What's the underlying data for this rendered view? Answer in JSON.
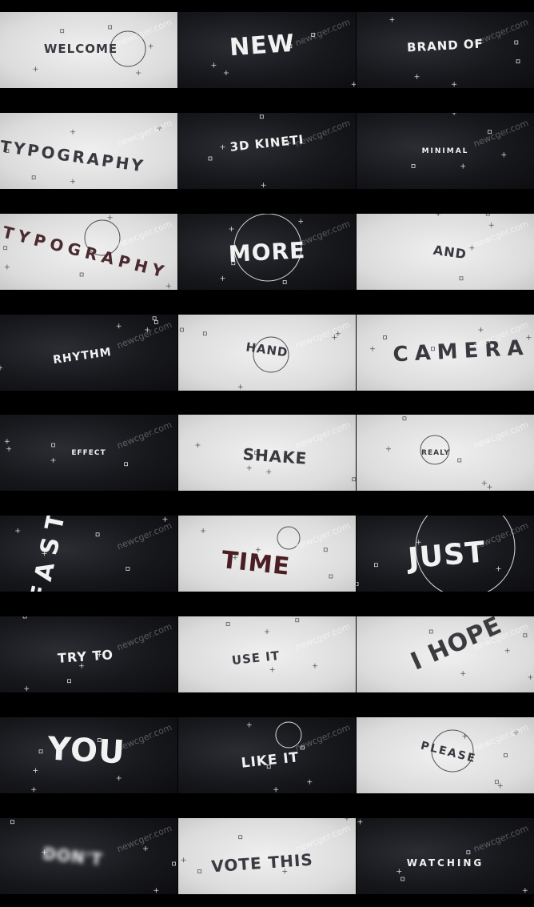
{
  "watermark": "newcger.com",
  "frames": [
    {
      "text": "WELCOME",
      "theme": "light"
    },
    {
      "text": "NEW",
      "theme": "dark"
    },
    {
      "text": "BRAND OF",
      "theme": "dark"
    },
    {
      "text": "TYPOGRAPHY",
      "theme": "light"
    },
    {
      "text": "3D KINETI",
      "theme": "dark"
    },
    {
      "text": "MINIMAL",
      "theme": "dark"
    },
    {
      "text": "TYPOGRAPHY",
      "theme": "light"
    },
    {
      "text": "MORE",
      "theme": "dark"
    },
    {
      "text": "AND",
      "theme": "light"
    },
    {
      "text": "RHYTHM",
      "theme": "dark"
    },
    {
      "text": "HAND",
      "theme": "light"
    },
    {
      "text": "CAMERA",
      "theme": "light"
    },
    {
      "text": "EFFECT",
      "theme": "dark"
    },
    {
      "text": "SHAKE",
      "theme": "light"
    },
    {
      "text": "REALY",
      "theme": "light"
    },
    {
      "text": "FAST",
      "theme": "dark"
    },
    {
      "text": "TIME",
      "theme": "light"
    },
    {
      "text": "JUST",
      "theme": "dark"
    },
    {
      "text": "TRY TO",
      "theme": "dark"
    },
    {
      "text": "USE IT",
      "theme": "light"
    },
    {
      "text": "I HOPE",
      "theme": "light"
    },
    {
      "text": "YOU",
      "theme": "dark"
    },
    {
      "text": "LIKE IT",
      "theme": "dark"
    },
    {
      "text": "PLEASE",
      "theme": "light"
    },
    {
      "text": "DON'T",
      "theme": "dark"
    },
    {
      "text": "VOTE THIS",
      "theme": "light"
    },
    {
      "text": "WATCHING",
      "theme": "dark"
    }
  ]
}
